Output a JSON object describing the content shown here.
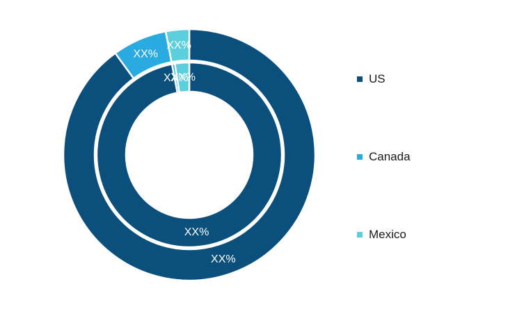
{
  "chart_data": {
    "type": "pie",
    "style": "nested-donut",
    "title": "",
    "legend_position": "right",
    "categories": [
      "US",
      "Canada",
      "Mexico"
    ],
    "colors": [
      "#0b4f7c",
      "#29abe2",
      "#5ccfdc"
    ],
    "rings": [
      {
        "ring": "outer",
        "values": [
          90,
          7,
          3
        ],
        "labels": [
          "XX%",
          "XX%",
          "XX%"
        ]
      },
      {
        "ring": "inner",
        "values": [
          97,
          0.5,
          2.5
        ],
        "labels": [
          "XX%",
          "XX%",
          "XX%"
        ]
      }
    ]
  }
}
